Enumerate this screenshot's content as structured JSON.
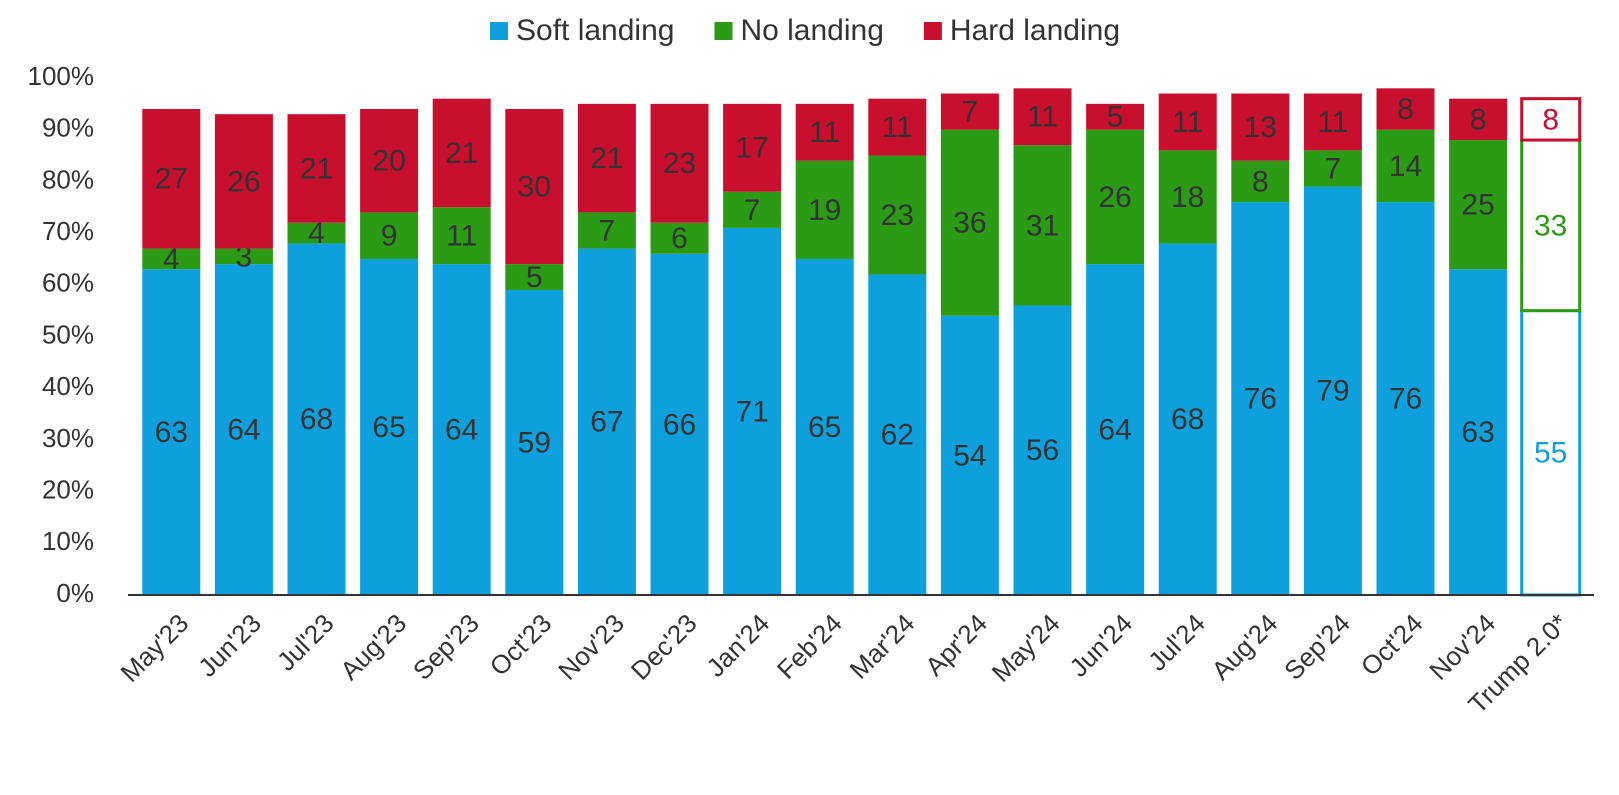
{
  "chart_data": {
    "type": "stacked_bar",
    "categories": [
      "May'23",
      "Jun'23",
      "Jul'23",
      "Aug'23",
      "Sep'23",
      "Oct'23",
      "Nov'23",
      "Dec'23",
      "Jan'24",
      "Feb'24",
      "Mar'24",
      "Apr'24",
      "May'24",
      "Jun'24",
      "Jul'24",
      "Aug'24",
      "Sep'24",
      "Oct'24",
      "Nov'24",
      "Trump 2.0*"
    ],
    "outlined": [
      false,
      false,
      false,
      false,
      false,
      false,
      false,
      false,
      false,
      false,
      false,
      false,
      false,
      false,
      false,
      false,
      false,
      false,
      false,
      true
    ],
    "series": [
      {
        "name": "Soft landing",
        "color": "#0ea0dc",
        "values": [
          63,
          64,
          68,
          65,
          64,
          59,
          67,
          66,
          71,
          65,
          62,
          54,
          56,
          64,
          68,
          76,
          79,
          76,
          63,
          55
        ]
      },
      {
        "name": "No landing",
        "color": "#2b9a14",
        "values": [
          4,
          3,
          4,
          9,
          11,
          5,
          7,
          6,
          7,
          19,
          23,
          36,
          31,
          26,
          18,
          8,
          7,
          14,
          25,
          33
        ]
      },
      {
        "name": "Hard landing",
        "color": "#c8102e",
        "values": [
          27,
          26,
          21,
          20,
          21,
          30,
          21,
          23,
          17,
          11,
          11,
          7,
          11,
          5,
          11,
          13,
          11,
          8,
          8,
          8
        ]
      }
    ],
    "ylim": [
      0,
      100
    ],
    "yticks": [
      {
        "value": 0,
        "label": "0%"
      },
      {
        "value": 10,
        "label": "10%"
      },
      {
        "value": 20,
        "label": "20%"
      },
      {
        "value": 30,
        "label": "30%"
      },
      {
        "value": 40,
        "label": "40%"
      },
      {
        "value": 50,
        "label": "50%"
      },
      {
        "value": 60,
        "label": "60%"
      },
      {
        "value": 70,
        "label": "70%"
      },
      {
        "value": 80,
        "label": "80%"
      },
      {
        "value": 90,
        "label": "90%"
      },
      {
        "value": 100,
        "label": "100%"
      }
    ],
    "legend": "top",
    "grid": false
  }
}
